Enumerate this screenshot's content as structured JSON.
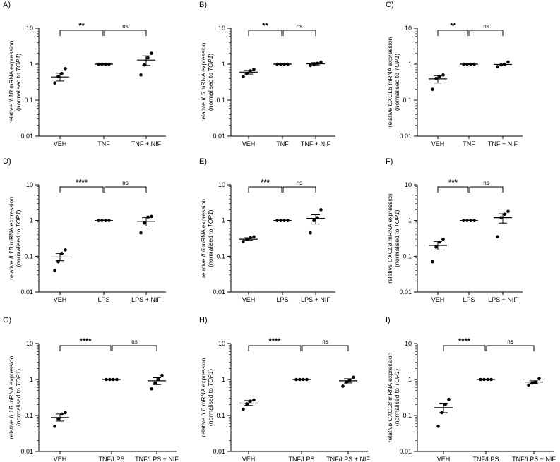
{
  "chart_data": [
    {
      "panel": "A)",
      "type": "scatter",
      "yscale": "log",
      "ylim": [
        0.01,
        10
      ],
      "yticks": [
        "10",
        "1",
        "0.1",
        "0.01"
      ],
      "ylabel": {
        "pre": "relative ",
        "gene": "IL1B",
        "post": " mRNA expression",
        "line2_pre": "(normalised to ",
        "ref": "TOP1",
        "line2_post": ")"
      },
      "categories": [
        "VEH",
        "TNF",
        "TNF + NIF"
      ],
      "points": [
        [
          0.3,
          0.45,
          0.55,
          0.75
        ],
        [
          1.0,
          1.0,
          1.0,
          1.0
        ],
        [
          0.5,
          0.95,
          1.5,
          2.0
        ]
      ],
      "means": [
        0.44,
        1.0,
        1.3
      ],
      "sem": [
        [
          0.34,
          0.56
        ],
        [
          0.96,
          1.04
        ],
        [
          0.92,
          1.7
        ]
      ],
      "comparisons": [
        {
          "from": 0,
          "to": 1,
          "label": "**"
        },
        {
          "from": 1,
          "to": 2,
          "label": "ns"
        }
      ]
    },
    {
      "panel": "B)",
      "type": "scatter",
      "yscale": "log",
      "ylim": [
        0.01,
        10
      ],
      "yticks": [
        "10",
        "1",
        "0.1",
        "0.01"
      ],
      "ylabel": {
        "pre": "relative ",
        "gene": "IL6",
        "post": " mRNA expression",
        "line2_pre": "(normalised to ",
        "ref": "TOP1",
        "line2_post": ")"
      },
      "categories": [
        "VEH",
        "TNF",
        "TNF + NIF"
      ],
      "points": [
        [
          0.45,
          0.55,
          0.65,
          0.72
        ],
        [
          1.0,
          1.0,
          1.0,
          1.0
        ],
        [
          0.92,
          0.98,
          1.05,
          1.15
        ]
      ],
      "means": [
        0.6,
        1.0,
        1.02
      ],
      "sem": [
        [
          0.53,
          0.67
        ],
        [
          0.98,
          1.02
        ],
        [
          0.95,
          1.1
        ]
      ],
      "comparisons": [
        {
          "from": 0,
          "to": 1,
          "label": "**"
        },
        {
          "from": 1,
          "to": 2,
          "label": "ns"
        }
      ]
    },
    {
      "panel": "C)",
      "type": "scatter",
      "yscale": "log",
      "ylim": [
        0.01,
        10
      ],
      "yticks": [
        "10",
        "1",
        "0.1",
        "0.01"
      ],
      "ylabel": {
        "pre": "relative ",
        "gene": "CXCL8",
        "post": " mRNA expression",
        "line2_pre": "(normalised to ",
        "ref": "TOP1",
        "line2_post": ")"
      },
      "categories": [
        "VEH",
        "TNF",
        "TNF + NIF"
      ],
      "points": [
        [
          0.2,
          0.4,
          0.45,
          0.5
        ],
        [
          1.0,
          1.0,
          1.0,
          1.0
        ],
        [
          0.85,
          0.95,
          1.0,
          1.15
        ]
      ],
      "means": [
        0.39,
        1.0,
        0.98
      ],
      "sem": [
        [
          0.3,
          0.48
        ],
        [
          0.98,
          1.02
        ],
        [
          0.9,
          1.07
        ]
      ],
      "comparisons": [
        {
          "from": 0,
          "to": 1,
          "label": "**"
        },
        {
          "from": 1,
          "to": 2,
          "label": "ns"
        }
      ]
    },
    {
      "panel": "D)",
      "type": "scatter",
      "yscale": "log",
      "ylim": [
        0.01,
        10
      ],
      "yticks": [
        "10",
        "1",
        "0.1",
        "0.01"
      ],
      "ylabel": {
        "pre": "relative ",
        "gene": "IL1B",
        "post": " mRNA expression",
        "line2_pre": "(normalised to ",
        "ref": "TOP1",
        "line2_post": ")"
      },
      "categories": [
        "VEH",
        "LPS",
        "LPS + NIF"
      ],
      "points": [
        [
          0.04,
          0.07,
          0.12,
          0.15
        ],
        [
          1.0,
          1.0,
          1.0,
          1.0
        ],
        [
          0.45,
          0.85,
          1.25,
          1.3
        ]
      ],
      "means": [
        0.095,
        1.0,
        0.95
      ],
      "sem": [
        [
          0.075,
          0.12
        ],
        [
          0.98,
          1.02
        ],
        [
          0.7,
          1.2
        ]
      ],
      "comparisons": [
        {
          "from": 0,
          "to": 1,
          "label": "****"
        },
        {
          "from": 1,
          "to": 2,
          "label": "ns"
        }
      ]
    },
    {
      "panel": "E)",
      "type": "scatter",
      "yscale": "log",
      "ylim": [
        0.01,
        10
      ],
      "yticks": [
        "10",
        "1",
        "0.1",
        "0.01"
      ],
      "ylabel": {
        "pre": "relative ",
        "gene": "IL6",
        "post": " mRNA expression",
        "line2_pre": "(normalised to ",
        "ref": "TOP1",
        "line2_post": ")"
      },
      "categories": [
        "VEH",
        "LPS",
        "LPS + NIF"
      ],
      "points": [
        [
          0.26,
          0.3,
          0.33,
          0.35
        ],
        [
          1.0,
          1.0,
          1.0,
          1.0
        ],
        [
          0.45,
          1.0,
          1.2,
          2.0
        ]
      ],
      "means": [
        0.3,
        1.0,
        1.15
      ],
      "sem": [
        [
          0.28,
          0.33
        ],
        [
          0.98,
          1.02
        ],
        [
          0.8,
          1.45
        ]
      ],
      "comparisons": [
        {
          "from": 0,
          "to": 1,
          "label": "***"
        },
        {
          "from": 1,
          "to": 2,
          "label": "ns"
        }
      ]
    },
    {
      "panel": "F)",
      "type": "scatter",
      "yscale": "log",
      "ylim": [
        0.01,
        10
      ],
      "yticks": [
        "10",
        "1",
        "0.1",
        "0.01"
      ],
      "ylabel": {
        "pre": "relative ",
        "gene": "CXCL8",
        "post": " mRNA expression",
        "line2_pre": "(normalised to ",
        "ref": "TOP1",
        "line2_post": ")"
      },
      "categories": [
        "VEH",
        "LPS",
        "LPS + NIF"
      ],
      "points": [
        [
          0.07,
          0.18,
          0.25,
          0.3
        ],
        [
          1.0,
          1.0,
          1.0,
          1.0
        ],
        [
          0.35,
          1.2,
          1.5,
          1.8
        ]
      ],
      "means": [
        0.2,
        1.0,
        1.2
      ],
      "sem": [
        [
          0.15,
          0.26
        ],
        [
          0.98,
          1.02
        ],
        [
          0.85,
          1.55
        ]
      ],
      "comparisons": [
        {
          "from": 0,
          "to": 1,
          "label": "***"
        },
        {
          "from": 1,
          "to": 2,
          "label": "ns"
        }
      ]
    },
    {
      "panel": "G)",
      "type": "scatter",
      "yscale": "log",
      "ylim": [
        0.01,
        10
      ],
      "yticks": [
        "10",
        "1",
        "0.1",
        "0.01"
      ],
      "ylabel": {
        "pre": "relative ",
        "gene": "IL1B",
        "post": " mRNA expression",
        "line2_pre": "(normalised to ",
        "ref": "TOP1",
        "line2_post": ")"
      },
      "categories": [
        "VEH",
        "TNF/LPS",
        "TNF/LPS + NIF"
      ],
      "points": [
        [
          0.05,
          0.08,
          0.11,
          0.12
        ],
        [
          1.0,
          1.0,
          1.0,
          1.0
        ],
        [
          0.55,
          0.8,
          1.0,
          1.3
        ]
      ],
      "means": [
        0.088,
        1.0,
        0.92
      ],
      "sem": [
        [
          0.07,
          0.11
        ],
        [
          0.98,
          1.02
        ],
        [
          0.72,
          1.12
        ]
      ],
      "comparisons": [
        {
          "from": 0,
          "to": 1,
          "label": "****"
        },
        {
          "from": 1,
          "to": 2,
          "label": "ns"
        }
      ]
    },
    {
      "panel": "H)",
      "type": "scatter",
      "yscale": "log",
      "ylim": [
        0.01,
        10
      ],
      "yticks": [
        "10",
        "1",
        "0.1",
        "0.01"
      ],
      "ylabel": {
        "pre": "relative ",
        "gene": "IL6",
        "post": " mRNA expression",
        "line2_pre": "(normalised to ",
        "ref": "TOP1",
        "line2_post": ")"
      },
      "categories": [
        "VEH",
        "TNF/LPS",
        "TNF/LPS + NIF"
      ],
      "points": [
        [
          0.15,
          0.21,
          0.25,
          0.27
        ],
        [
          1.0,
          1.0,
          1.0,
          1.0
        ],
        [
          0.65,
          0.85,
          0.95,
          1.15
        ]
      ],
      "means": [
        0.22,
        1.0,
        0.92
      ],
      "sem": [
        [
          0.19,
          0.26
        ],
        [
          0.98,
          1.02
        ],
        [
          0.8,
          1.05
        ]
      ],
      "comparisons": [
        {
          "from": 0,
          "to": 1,
          "label": "****"
        },
        {
          "from": 1,
          "to": 2,
          "label": "ns"
        }
      ]
    },
    {
      "panel": "I)",
      "type": "scatter",
      "yscale": "log",
      "ylim": [
        0.01,
        10
      ],
      "yticks": [
        "10",
        "1",
        "0.1",
        "0.01"
      ],
      "ylabel": {
        "pre": "relative ",
        "gene": "CXCL8",
        "post": " mRNA expression",
        "line2_pre": "(normalised to ",
        "ref": "TOP1",
        "line2_post": ")"
      },
      "categories": [
        "VEH",
        "TNF/LPS",
        "TNF/LPS + NIF"
      ],
      "points": [
        [
          0.05,
          0.12,
          0.2,
          0.28
        ],
        [
          1.0,
          1.0,
          1.0,
          1.0
        ],
        [
          0.7,
          0.8,
          0.85,
          1.05
        ]
      ],
      "means": [
        0.165,
        1.0,
        0.85
      ],
      "sem": [
        [
          0.12,
          0.21
        ],
        [
          0.98,
          1.02
        ],
        [
          0.77,
          0.92
        ]
      ],
      "comparisons": [
        {
          "from": 0,
          "to": 1,
          "label": "****"
        },
        {
          "from": 1,
          "to": 2,
          "label": "ns"
        }
      ]
    }
  ]
}
